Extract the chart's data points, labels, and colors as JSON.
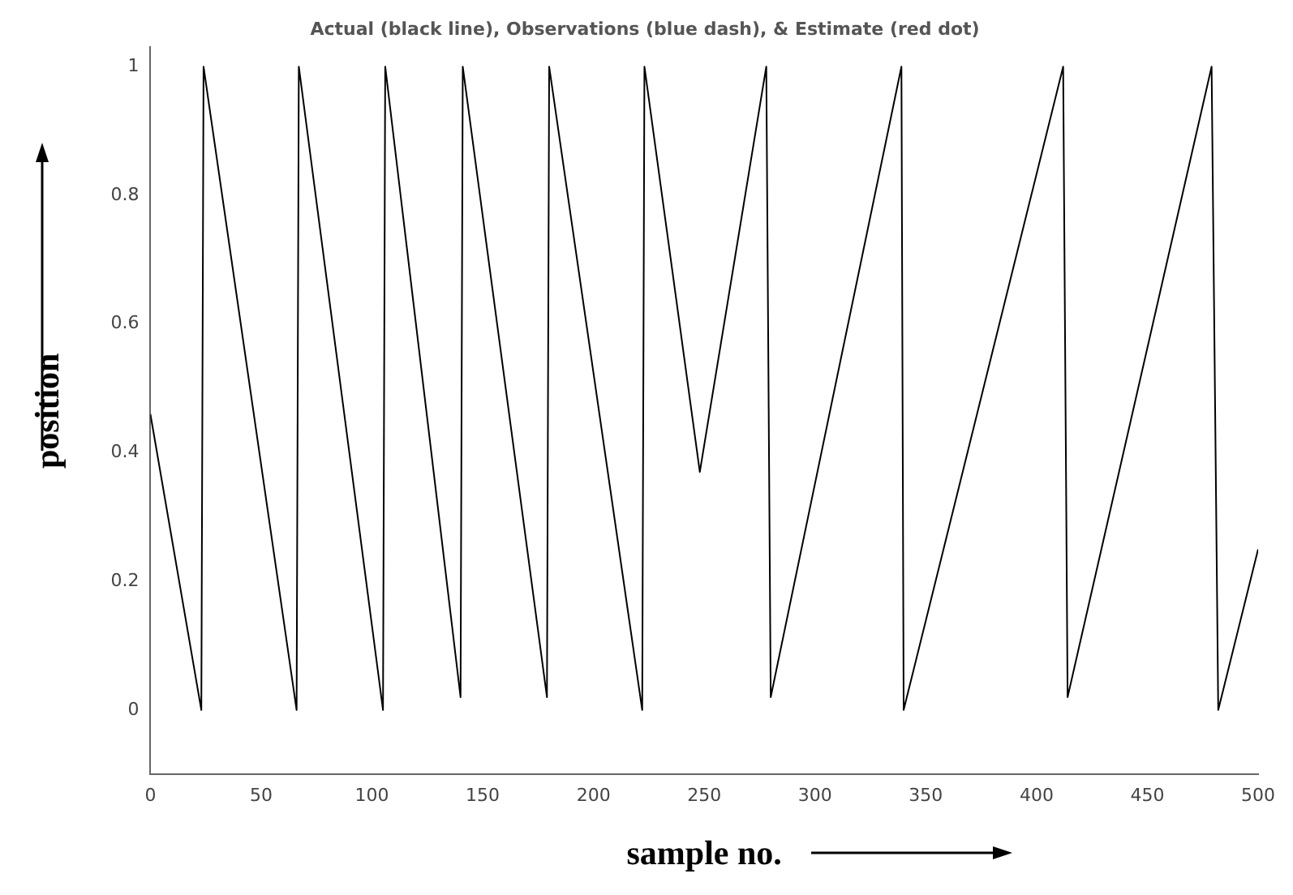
{
  "chart_data": {
    "type": "line",
    "title": "Actual (black line), Observations (blue dash), & Estimate (red dot)",
    "xlabel": "sample no.",
    "ylabel": "position",
    "series": [
      {
        "color": "#000000",
        "x": [
          0,
          23,
          24,
          66,
          67,
          105,
          106,
          140,
          141,
          179,
          180,
          222,
          223,
          248,
          278,
          280,
          339,
          340,
          412,
          414,
          479,
          482,
          500
        ],
        "values": [
          0.46,
          0,
          1,
          0,
          1,
          0,
          1,
          0.02,
          1,
          0.02,
          1,
          0,
          1,
          0.37,
          1,
          0.02,
          1,
          0,
          1,
          0.02,
          1,
          0,
          0.25
        ]
      }
    ],
    "xlim": [
      0,
      500
    ],
    "xticks": [
      0,
      50,
      100,
      150,
      200,
      250,
      300,
      350,
      400,
      450,
      500
    ],
    "ylim": [
      -0.1,
      1.03
    ],
    "yticks": [
      0,
      0.2,
      0.4,
      0.6,
      0.8,
      1
    ],
    "grid": false,
    "legend": false,
    "marker": "none",
    "line_style": "solid"
  }
}
